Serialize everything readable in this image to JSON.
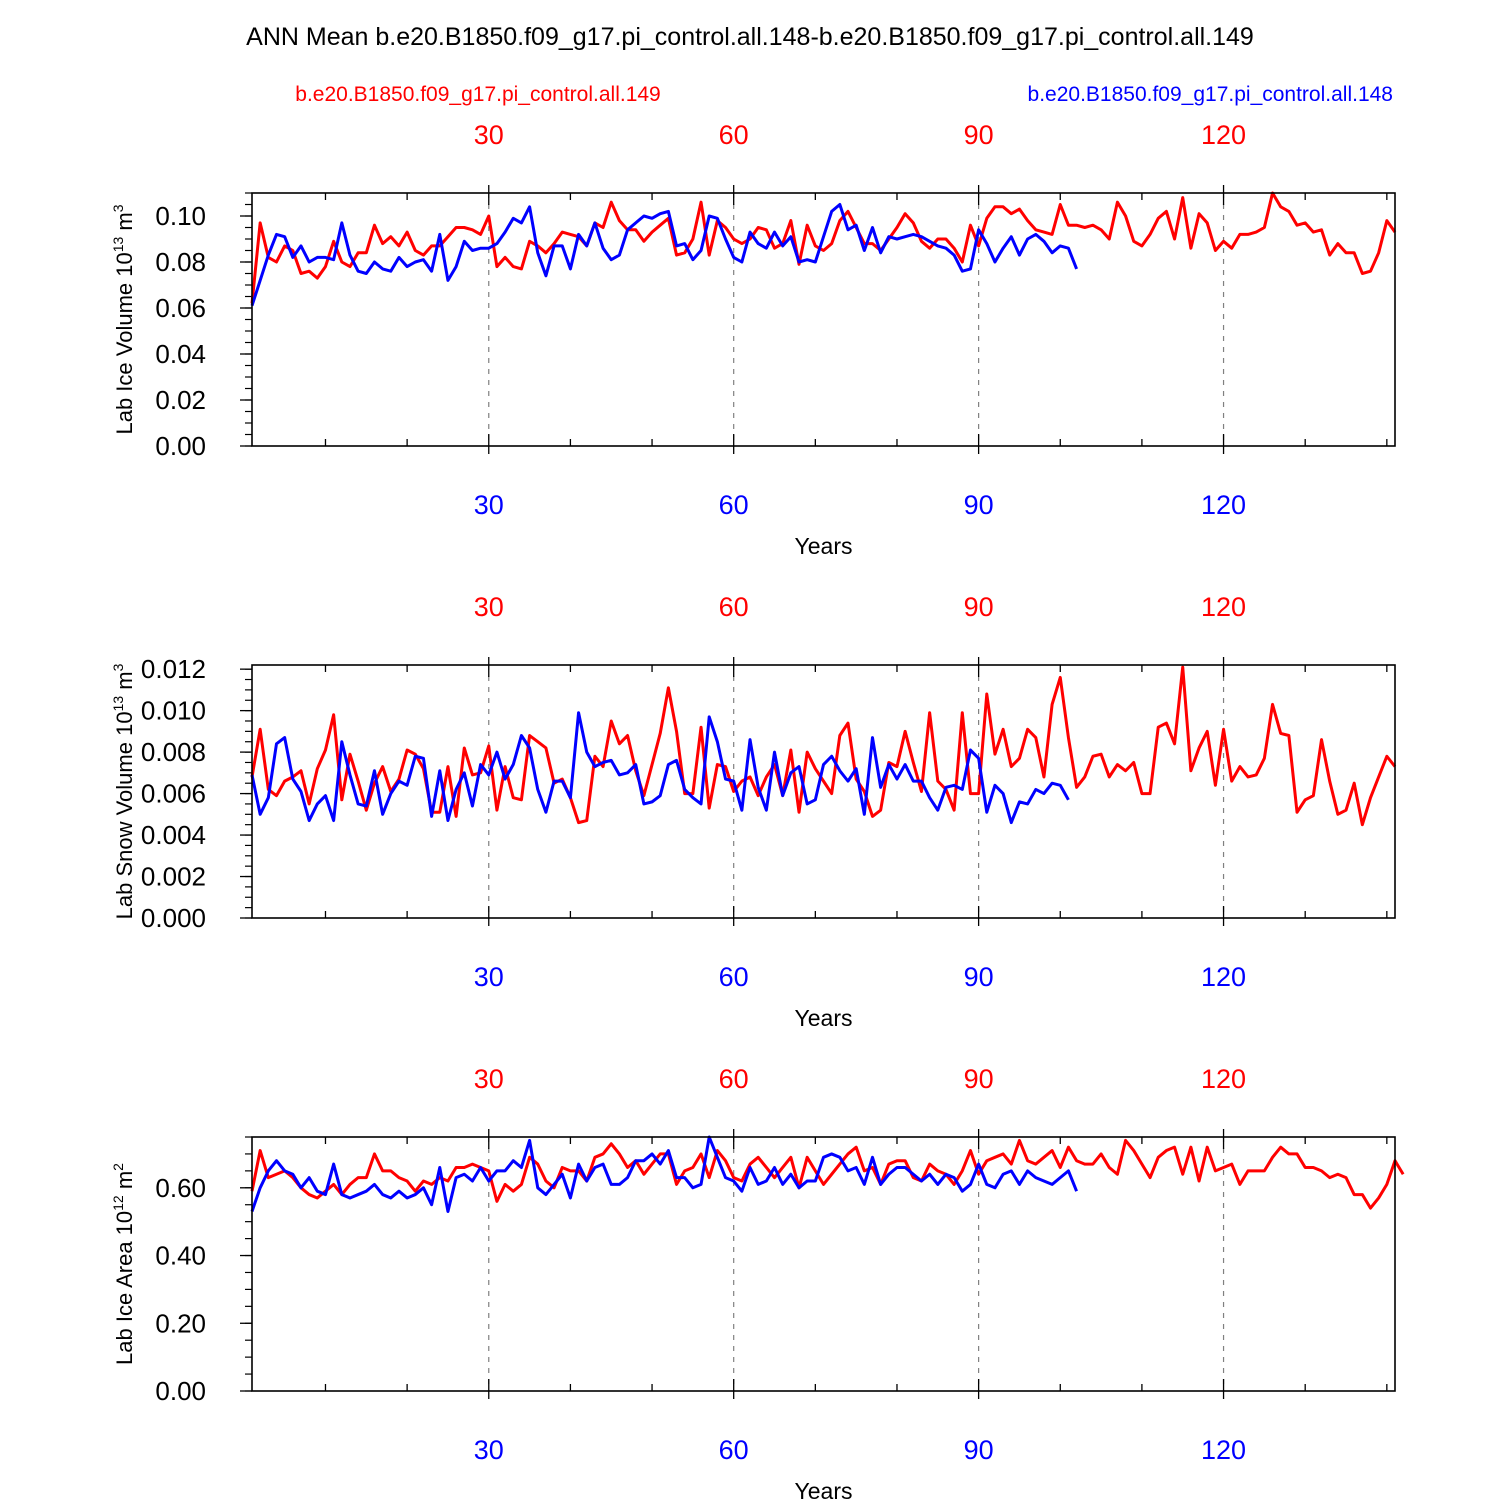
{
  "title": "ANN Mean b.e20.B1850.f09_g17.pi_control.all.148-b.e20.B1850.f09_g17.pi_control.all.149",
  "legend": {
    "red_label": "b.e20.B1850.f09_g17.pi_control.all.149",
    "blue_label": "b.e20.B1850.f09_g17.pi_control.all.148"
  },
  "colors": {
    "red": "#ff0000",
    "blue": "#0000ff",
    "axis": "#000000",
    "grid": "#808080"
  },
  "chart_data": [
    {
      "type": "line",
      "ylabel": "Lab Ice Volume 10",
      "ylabel_sup": "13",
      "ylabel_unit": " m",
      "ylabel_unit_sup": "3",
      "xlabel": "Years",
      "xlim": [
        1,
        141
      ],
      "ylim": [
        0,
        0.11
      ],
      "yticks": [
        0,
        0.02,
        0.04,
        0.06,
        0.08,
        0.1
      ],
      "ytick_labels": [
        "0.00",
        "0.02",
        "0.04",
        "0.06",
        "0.08",
        "0.10"
      ],
      "yminor": 0.005,
      "xticks": [
        30,
        60,
        90,
        120
      ],
      "xtick_labels": [
        "30",
        "60",
        "90",
        "120"
      ],
      "series": [
        {
          "name": "b.e20.B1850.f09_g17.pi_control.all.149",
          "color": "#ff0000",
          "values": [
            0.062,
            0.097,
            0.082,
            0.08,
            0.087,
            0.085,
            0.075,
            0.076,
            0.073,
            0.078,
            0.089,
            0.08,
            0.078,
            0.084,
            0.084,
            0.096,
            0.088,
            0.091,
            0.087,
            0.093,
            0.085,
            0.083,
            0.087,
            0.087,
            0.091,
            0.095,
            0.095,
            0.094,
            0.092,
            0.1,
            0.078,
            0.082,
            0.078,
            0.077,
            0.089,
            0.087,
            0.084,
            0.088,
            0.093,
            0.092,
            0.091,
            0.087,
            0.097,
            0.095,
            0.106,
            0.098,
            0.094,
            0.094,
            0.089,
            0.093,
            0.096,
            0.099,
            0.083,
            0.084,
            0.09,
            0.106,
            0.083,
            0.098,
            0.095,
            0.09,
            0.088,
            0.09,
            0.095,
            0.094,
            0.086,
            0.088,
            0.098,
            0.079,
            0.096,
            0.087,
            0.085,
            0.088,
            0.098,
            0.102,
            0.095,
            0.088,
            0.088,
            0.085,
            0.09,
            0.095,
            0.101,
            0.097,
            0.089,
            0.086,
            0.09,
            0.09,
            0.086,
            0.08,
            0.096,
            0.087,
            0.099,
            0.104,
            0.104,
            0.101,
            0.103,
            0.098,
            0.094,
            0.093,
            0.092,
            0.105,
            0.096,
            0.096,
            0.095,
            0.096,
            0.094,
            0.09,
            0.106,
            0.1,
            0.089,
            0.087,
            0.092,
            0.099,
            0.102,
            0.09,
            0.108,
            0.086,
            0.101,
            0.097,
            0.085,
            0.089,
            0.086,
            0.092,
            0.092,
            0.093,
            0.095,
            0.11,
            0.104,
            0.102,
            0.096,
            0.097,
            0.093,
            0.094,
            0.083,
            0.088,
            0.084,
            0.084,
            0.075,
            0.076,
            0.084,
            0.098,
            0.093
          ]
        },
        {
          "name": "b.e20.B1850.f09_g17.pi_control.all.148",
          "color": "#0000ff",
          "values": [
            0.061,
            0.072,
            0.083,
            0.092,
            0.091,
            0.082,
            0.087,
            0.08,
            0.082,
            0.082,
            0.081,
            0.097,
            0.083,
            0.076,
            0.075,
            0.08,
            0.077,
            0.076,
            0.082,
            0.078,
            0.08,
            0.081,
            0.076,
            0.092,
            0.072,
            0.078,
            0.089,
            0.085,
            0.086,
            0.086,
            0.088,
            0.093,
            0.099,
            0.097,
            0.104,
            0.084,
            0.074,
            0.087,
            0.087,
            0.077,
            0.092,
            0.087,
            0.097,
            0.086,
            0.081,
            0.083,
            0.094,
            0.097,
            0.1,
            0.099,
            0.101,
            0.102,
            0.087,
            0.088,
            0.081,
            0.085,
            0.1,
            0.099,
            0.09,
            0.082,
            0.08,
            0.093,
            0.088,
            0.086,
            0.093,
            0.087,
            0.091,
            0.08,
            0.081,
            0.08,
            0.091,
            0.102,
            0.105,
            0.094,
            0.096,
            0.085,
            0.095,
            0.084,
            0.091,
            0.09,
            0.091,
            0.092,
            0.091,
            0.089,
            0.087,
            0.086,
            0.083,
            0.076,
            0.077,
            0.094,
            0.088,
            0.08,
            0.086,
            0.091,
            0.083,
            0.09,
            0.092,
            0.089,
            0.084,
            0.087,
            0.086,
            0.077
          ]
        }
      ]
    },
    {
      "type": "line",
      "ylabel": "Lab Snow Volume 10",
      "ylabel_sup": "13",
      "ylabel_unit": " m",
      "ylabel_unit_sup": "3",
      "xlabel": "Years",
      "xlim": [
        1,
        141
      ],
      "ylim": [
        0,
        0.0122
      ],
      "yticks": [
        0,
        0.002,
        0.004,
        0.006,
        0.008,
        0.01,
        0.012
      ],
      "ytick_labels": [
        "0.000",
        "0.002",
        "0.004",
        "0.006",
        "0.008",
        "0.010",
        "0.012"
      ],
      "yminor": 0.0005,
      "xticks": [
        30,
        60,
        90,
        120
      ],
      "xtick_labels": [
        "30",
        "60",
        "90",
        "120"
      ],
      "series": [
        {
          "name": "b.e20.B1850.f09_g17.pi_control.all.149",
          "color": "#ff0000",
          "values": [
            0.0068,
            0.0091,
            0.0062,
            0.0059,
            0.0066,
            0.0068,
            0.0071,
            0.0055,
            0.0072,
            0.0081,
            0.0098,
            0.0057,
            0.0079,
            0.0066,
            0.0052,
            0.0065,
            0.0073,
            0.0061,
            0.0067,
            0.0081,
            0.0079,
            0.0072,
            0.0051,
            0.0051,
            0.0073,
            0.0049,
            0.0082,
            0.0069,
            0.007,
            0.0083,
            0.0052,
            0.0073,
            0.0058,
            0.0057,
            0.0088,
            0.0085,
            0.0082,
            0.0065,
            0.0067,
            0.0058,
            0.0046,
            0.0047,
            0.0078,
            0.0073,
            0.0095,
            0.0084,
            0.0088,
            0.0071,
            0.0059,
            0.0074,
            0.0089,
            0.0111,
            0.009,
            0.006,
            0.006,
            0.0092,
            0.0053,
            0.0074,
            0.0073,
            0.0061,
            0.0066,
            0.0068,
            0.0059,
            0.0068,
            0.0074,
            0.0059,
            0.0081,
            0.0051,
            0.008,
            0.0072,
            0.0066,
            0.006,
            0.0088,
            0.0094,
            0.0067,
            0.0061,
            0.0049,
            0.0052,
            0.0075,
            0.0073,
            0.009,
            0.0075,
            0.0061,
            0.0099,
            0.0066,
            0.0062,
            0.0052,
            0.0099,
            0.006,
            0.006,
            0.0108,
            0.0079,
            0.0091,
            0.0073,
            0.0077,
            0.0091,
            0.0087,
            0.0068,
            0.0103,
            0.0116,
            0.0087,
            0.0063,
            0.0068,
            0.0078,
            0.0079,
            0.0068,
            0.0074,
            0.0071,
            0.0075,
            0.006,
            0.006,
            0.0092,
            0.0094,
            0.0084,
            0.0121,
            0.0071,
            0.0082,
            0.009,
            0.0064,
            0.0091,
            0.0066,
            0.0073,
            0.0068,
            0.0069,
            0.0077,
            0.0103,
            0.0089,
            0.0088,
            0.0051,
            0.0057,
            0.0059,
            0.0086,
            0.0066,
            0.005,
            0.0052,
            0.0065,
            0.0045,
            0.0058,
            0.0068,
            0.0078,
            0.0073
          ]
        },
        {
          "name": "b.e20.B1850.f09_g17.pi_control.all.148",
          "color": "#0000ff",
          "values": [
            0.0069,
            0.005,
            0.0058,
            0.0084,
            0.0087,
            0.0067,
            0.0061,
            0.0047,
            0.0055,
            0.0059,
            0.0047,
            0.0085,
            0.0069,
            0.0055,
            0.0054,
            0.0071,
            0.005,
            0.006,
            0.0066,
            0.0064,
            0.0078,
            0.0077,
            0.0049,
            0.0071,
            0.0047,
            0.0062,
            0.007,
            0.0054,
            0.0074,
            0.0069,
            0.008,
            0.0067,
            0.0074,
            0.0088,
            0.0082,
            0.0062,
            0.0051,
            0.0066,
            0.0066,
            0.0058,
            0.0099,
            0.008,
            0.0073,
            0.0075,
            0.0076,
            0.0069,
            0.007,
            0.0074,
            0.0055,
            0.0056,
            0.0059,
            0.0074,
            0.0076,
            0.0062,
            0.0058,
            0.0055,
            0.0097,
            0.0085,
            0.0067,
            0.0066,
            0.0052,
            0.0086,
            0.0063,
            0.0052,
            0.008,
            0.0059,
            0.007,
            0.0073,
            0.0055,
            0.0057,
            0.0074,
            0.0078,
            0.0071,
            0.0066,
            0.0072,
            0.005,
            0.0087,
            0.0063,
            0.0074,
            0.0067,
            0.0074,
            0.0066,
            0.0066,
            0.0058,
            0.0052,
            0.0063,
            0.0064,
            0.0062,
            0.0081,
            0.0077,
            0.0051,
            0.0064,
            0.006,
            0.0046,
            0.0056,
            0.0055,
            0.0062,
            0.006,
            0.0065,
            0.0064,
            0.0057
          ]
        }
      ]
    },
    {
      "type": "line",
      "ylabel": "Lab Ice Area 10",
      "ylabel_sup": "12",
      "ylabel_unit": " m",
      "ylabel_unit_sup": "2",
      "xlabel": "Years",
      "xlim": [
        1,
        141
      ],
      "ylim": [
        0,
        0.75
      ],
      "yticks": [
        0,
        0.2,
        0.4,
        0.6
      ],
      "ytick_labels": [
        "0.00",
        "0.20",
        "0.40",
        "0.60"
      ],
      "yminor": 0.05,
      "xticks": [
        30,
        60,
        90,
        120
      ],
      "xtick_labels": [
        "30",
        "60",
        "90",
        "120"
      ],
      "series": [
        {
          "name": "b.e20.B1850.f09_g17.pi_control.all.149",
          "color": "#ff0000",
          "values": [
            0.59,
            0.71,
            0.63,
            0.64,
            0.65,
            0.63,
            0.6,
            0.58,
            0.57,
            0.59,
            0.61,
            0.58,
            0.61,
            0.63,
            0.63,
            0.7,
            0.65,
            0.65,
            0.63,
            0.62,
            0.59,
            0.62,
            0.61,
            0.63,
            0.62,
            0.66,
            0.66,
            0.67,
            0.66,
            0.65,
            0.56,
            0.61,
            0.59,
            0.61,
            0.69,
            0.67,
            0.62,
            0.6,
            0.66,
            0.65,
            0.65,
            0.62,
            0.69,
            0.7,
            0.73,
            0.7,
            0.66,
            0.68,
            0.64,
            0.67,
            0.7,
            0.7,
            0.61,
            0.65,
            0.66,
            0.7,
            0.63,
            0.71,
            0.68,
            0.63,
            0.62,
            0.67,
            0.69,
            0.66,
            0.63,
            0.66,
            0.69,
            0.6,
            0.69,
            0.65,
            0.61,
            0.64,
            0.67,
            0.7,
            0.72,
            0.65,
            0.66,
            0.61,
            0.67,
            0.68,
            0.68,
            0.63,
            0.62,
            0.67,
            0.65,
            0.64,
            0.61,
            0.65,
            0.71,
            0.64,
            0.68,
            0.69,
            0.7,
            0.67,
            0.74,
            0.68,
            0.67,
            0.69,
            0.71,
            0.66,
            0.72,
            0.68,
            0.67,
            0.67,
            0.7,
            0.66,
            0.64,
            0.74,
            0.71,
            0.67,
            0.63,
            0.69,
            0.71,
            0.72,
            0.64,
            0.72,
            0.62,
            0.72,
            0.65,
            0.66,
            0.67,
            0.61,
            0.65,
            0.65,
            0.65,
            0.69,
            0.72,
            0.7,
            0.7,
            0.66,
            0.66,
            0.65,
            0.63,
            0.64,
            0.63,
            0.58,
            0.58,
            0.54,
            0.57,
            0.61,
            0.68,
            0.64
          ]
        },
        {
          "name": "b.e20.B1850.f09_g17.pi_control.all.148",
          "color": "#0000ff",
          "values": [
            0.53,
            0.6,
            0.65,
            0.68,
            0.65,
            0.64,
            0.6,
            0.63,
            0.59,
            0.58,
            0.67,
            0.58,
            0.57,
            0.58,
            0.59,
            0.61,
            0.58,
            0.57,
            0.59,
            0.57,
            0.58,
            0.6,
            0.55,
            0.66,
            0.53,
            0.63,
            0.64,
            0.62,
            0.66,
            0.62,
            0.65,
            0.65,
            0.68,
            0.66,
            0.74,
            0.6,
            0.58,
            0.61,
            0.64,
            0.57,
            0.67,
            0.62,
            0.66,
            0.67,
            0.61,
            0.61,
            0.63,
            0.68,
            0.68,
            0.7,
            0.67,
            0.71,
            0.63,
            0.63,
            0.6,
            0.61,
            0.75,
            0.69,
            0.63,
            0.62,
            0.59,
            0.66,
            0.61,
            0.62,
            0.66,
            0.61,
            0.64,
            0.6,
            0.62,
            0.62,
            0.69,
            0.7,
            0.69,
            0.65,
            0.66,
            0.61,
            0.69,
            0.61,
            0.64,
            0.66,
            0.66,
            0.64,
            0.62,
            0.64,
            0.61,
            0.64,
            0.63,
            0.59,
            0.61,
            0.67,
            0.61,
            0.6,
            0.64,
            0.65,
            0.61,
            0.65,
            0.63,
            0.62,
            0.61,
            0.63,
            0.65,
            0.59
          ]
        }
      ]
    }
  ]
}
